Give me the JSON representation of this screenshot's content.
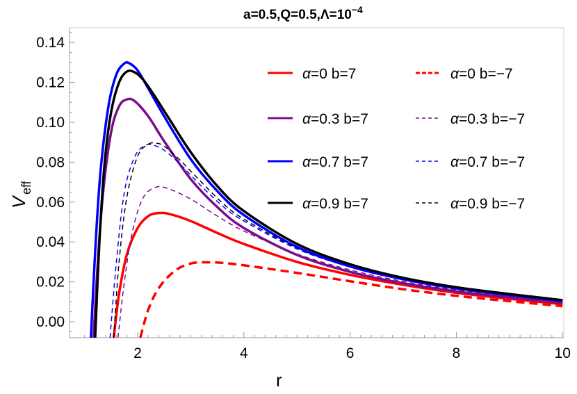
{
  "chart_data": {
    "type": "line",
    "title": "a=0.5,Q=0.5,Λ=10",
    "title_exponent": "−4",
    "xlabel": "r",
    "ylabel": "V",
    "ylabel_subscript": "eff",
    "xlim": [
      0.72,
      10.1
    ],
    "ylim": [
      -0.008,
      0.148
    ],
    "x_ticks": [
      2,
      4,
      6,
      8,
      10
    ],
    "x_tick_labels": [
      "2",
      "4",
      "6",
      "8",
      "10"
    ],
    "y_ticks": [
      0.0,
      0.02,
      0.04,
      0.06,
      0.08,
      0.1,
      0.12,
      0.14
    ],
    "y_tick_labels": [
      "0.00",
      "0.02",
      "0.04",
      "0.06",
      "0.08",
      "0.10",
      "0.12",
      "0.14"
    ],
    "grid": false,
    "legend_position": "upper right (inside plot, 2 columns)",
    "series": [
      {
        "name": "α=0 b=7",
        "color": "#ff0000",
        "style": "solid",
        "width": 3.5,
        "x": [
          1.55,
          1.65,
          1.8,
          2.0,
          2.2,
          2.4,
          2.6,
          3.0,
          3.5,
          4.0,
          5.0,
          6.0,
          7.0,
          8.0,
          9.0,
          10.0
        ],
        "y": [
          -0.008,
          0.014,
          0.034,
          0.047,
          0.053,
          0.0545,
          0.054,
          0.0505,
          0.0445,
          0.039,
          0.03,
          0.0235,
          0.0185,
          0.0145,
          0.0115,
          0.0088
        ]
      },
      {
        "name": "α=0 b=−7",
        "color": "#ff0000",
        "style": "dashed",
        "width": 3.5,
        "x": [
          2.05,
          2.2,
          2.4,
          2.7,
          3.0,
          3.3,
          3.6,
          4.0,
          5.0,
          6.0,
          7.0,
          8.0,
          9.0,
          10.0
        ],
        "y": [
          -0.008,
          0.006,
          0.017,
          0.0255,
          0.0292,
          0.0298,
          0.0295,
          0.0283,
          0.0245,
          0.0203,
          0.0163,
          0.013,
          0.0103,
          0.0078
        ]
      },
      {
        "name": "α=0.3 b=7",
        "color": "#7b0d8c",
        "style": "solid",
        "width": 3.5,
        "x": [
          1.17,
          1.25,
          1.35,
          1.5,
          1.65,
          1.8,
          1.95,
          2.2,
          2.5,
          3.0,
          3.5,
          4.0,
          5.0,
          6.0,
          7.0,
          8.0,
          9.0,
          10.0
        ],
        "y": [
          -0.008,
          0.03,
          0.065,
          0.095,
          0.108,
          0.1115,
          0.1105,
          0.103,
          0.0905,
          0.0715,
          0.0575,
          0.047,
          0.0335,
          0.025,
          0.0193,
          0.0152,
          0.0122,
          0.0095
        ]
      },
      {
        "name": "α=0.3 b=−7",
        "color": "#7b0d8c",
        "style": "dashed",
        "width": 1.5,
        "x": [
          1.63,
          1.75,
          1.9,
          2.1,
          2.35,
          2.6,
          3.0,
          3.5,
          4.0,
          5.0,
          6.0,
          7.0,
          8.0,
          9.0,
          10.0
        ],
        "y": [
          -0.008,
          0.02,
          0.045,
          0.062,
          0.0675,
          0.0665,
          0.0615,
          0.053,
          0.0455,
          0.034,
          0.026,
          0.0202,
          0.0159,
          0.0127,
          0.0099
        ]
      },
      {
        "name": "α=0.7 b=7",
        "color": "#0000ff",
        "style": "solid",
        "width": 3.5,
        "x": [
          1.12,
          1.2,
          1.3,
          1.45,
          1.6,
          1.75,
          1.85,
          2.0,
          2.2,
          2.5,
          3.0,
          3.5,
          4.0,
          5.0,
          6.0,
          7.0,
          8.0,
          9.0,
          10.0
        ],
        "y": [
          -0.008,
          0.035,
          0.075,
          0.108,
          0.124,
          0.1295,
          0.1295,
          0.126,
          0.117,
          0.103,
          0.0815,
          0.0655,
          0.0535,
          0.0375,
          0.0277,
          0.0213,
          0.0167,
          0.0134,
          0.0104
        ]
      },
      {
        "name": "α=0.7 b=−7",
        "color": "#0000ff",
        "style": "dashed",
        "width": 1.5,
        "x": [
          1.48,
          1.6,
          1.75,
          1.95,
          2.15,
          2.3,
          2.5,
          2.8,
          3.2,
          3.6,
          4.0,
          5.0,
          6.0,
          7.0,
          8.0,
          9.0,
          10.0
        ],
        "y": [
          -0.008,
          0.03,
          0.065,
          0.083,
          0.0885,
          0.0885,
          0.086,
          0.079,
          0.068,
          0.058,
          0.0505,
          0.0365,
          0.0275,
          0.0213,
          0.0168,
          0.0135,
          0.0105
        ]
      },
      {
        "name": "α=0.9 b=7",
        "color": "#000000",
        "style": "solid",
        "width": 3.5,
        "x": [
          1.2,
          1.28,
          1.38,
          1.5,
          1.65,
          1.8,
          1.95,
          2.1,
          2.3,
          2.6,
          3.0,
          3.5,
          4.0,
          5.0,
          6.0,
          7.0,
          8.0,
          9.0,
          10.0
        ],
        "y": [
          -0.008,
          0.04,
          0.08,
          0.105,
          0.12,
          0.1255,
          0.125,
          0.1215,
          0.114,
          0.1015,
          0.085,
          0.068,
          0.0555,
          0.039,
          0.0288,
          0.022,
          0.0173,
          0.0139,
          0.0108
        ]
      },
      {
        "name": "α=0.9 b=−7",
        "color": "#000000",
        "style": "dashed",
        "width": 1.5,
        "x": [
          1.55,
          1.65,
          1.8,
          2.0,
          2.2,
          2.35,
          2.5,
          2.8,
          3.2,
          3.6,
          4.0,
          5.0,
          6.0,
          7.0,
          8.0,
          9.0,
          10.0
        ],
        "y": [
          -0.008,
          0.03,
          0.063,
          0.083,
          0.089,
          0.0895,
          0.088,
          0.081,
          0.07,
          0.0595,
          0.0515,
          0.037,
          0.0278,
          0.0215,
          0.017,
          0.0137,
          0.0107
        ]
      }
    ]
  },
  "legend": {
    "items": [
      {
        "label": "α=0 b=7"
      },
      {
        "label": "α=0 b=−7"
      },
      {
        "label": "α=0.3 b=7"
      },
      {
        "label": "α=0.3 b=−7"
      },
      {
        "label": "α=0.7 b=7"
      },
      {
        "label": "α=0.7 b=−7"
      },
      {
        "label": "α=0.9 b=7"
      },
      {
        "label": "α=0.9 b=−7"
      }
    ]
  }
}
